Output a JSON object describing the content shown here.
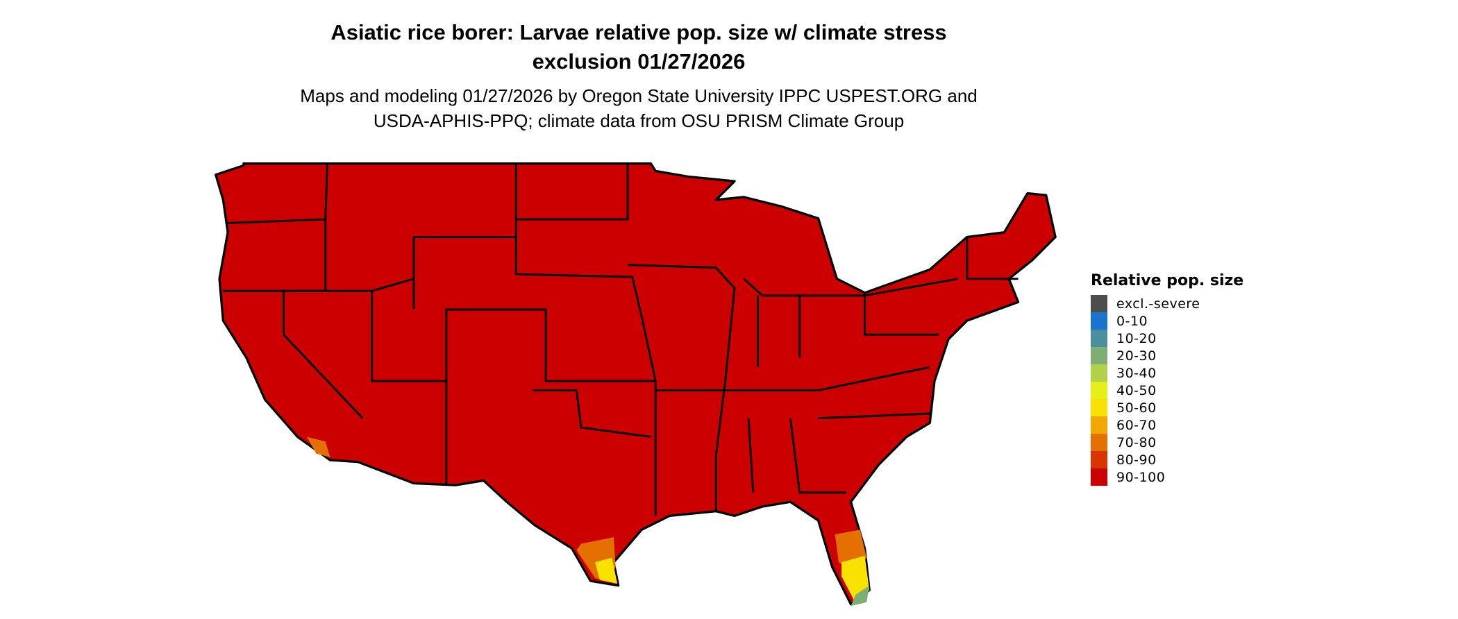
{
  "title_line1": "Asiatic rice borer: Larvae relative pop. size w/ climate stress",
  "title_line2": "exclusion 01/27/2026",
  "subtitle_line1": "Maps and modeling 01/27/2026 by Oregon State University IPPC USPEST.ORG and",
  "subtitle_line2": "USDA-APHIS-PPQ; climate data from OSU PRISM Climate Group",
  "legend": {
    "title": "Relative pop. size",
    "items": [
      {
        "label": "excl.-severe",
        "color": "#4d4d4d"
      },
      {
        "label": "0-10",
        "color": "#1874cd"
      },
      {
        "label": "10-20",
        "color": "#4a8f9b"
      },
      {
        "label": "20-30",
        "color": "#7dae72"
      },
      {
        "label": "30-40",
        "color": "#b2d04a"
      },
      {
        "label": "40-50",
        "color": "#e5ef1a"
      },
      {
        "label": "50-60",
        "color": "#f9e100"
      },
      {
        "label": "60-70",
        "color": "#f0a800"
      },
      {
        "label": "70-80",
        "color": "#e37000"
      },
      {
        "label": "80-90",
        "color": "#d83500"
      },
      {
        "label": "90-100",
        "color": "#cc0000"
      }
    ]
  },
  "map": {
    "region": "Contiguous United States",
    "dominant_class": "90-100",
    "dominant_color": "#cc0000",
    "secondary_areas": [
      {
        "area": "South Texas",
        "classes": [
          "70-80",
          "50-60"
        ]
      },
      {
        "area": "Southern Florida",
        "classes": [
          "70-80",
          "50-60",
          "20-30"
        ]
      },
      {
        "area": "Southern California coast",
        "classes": [
          "70-80"
        ]
      }
    ]
  }
}
